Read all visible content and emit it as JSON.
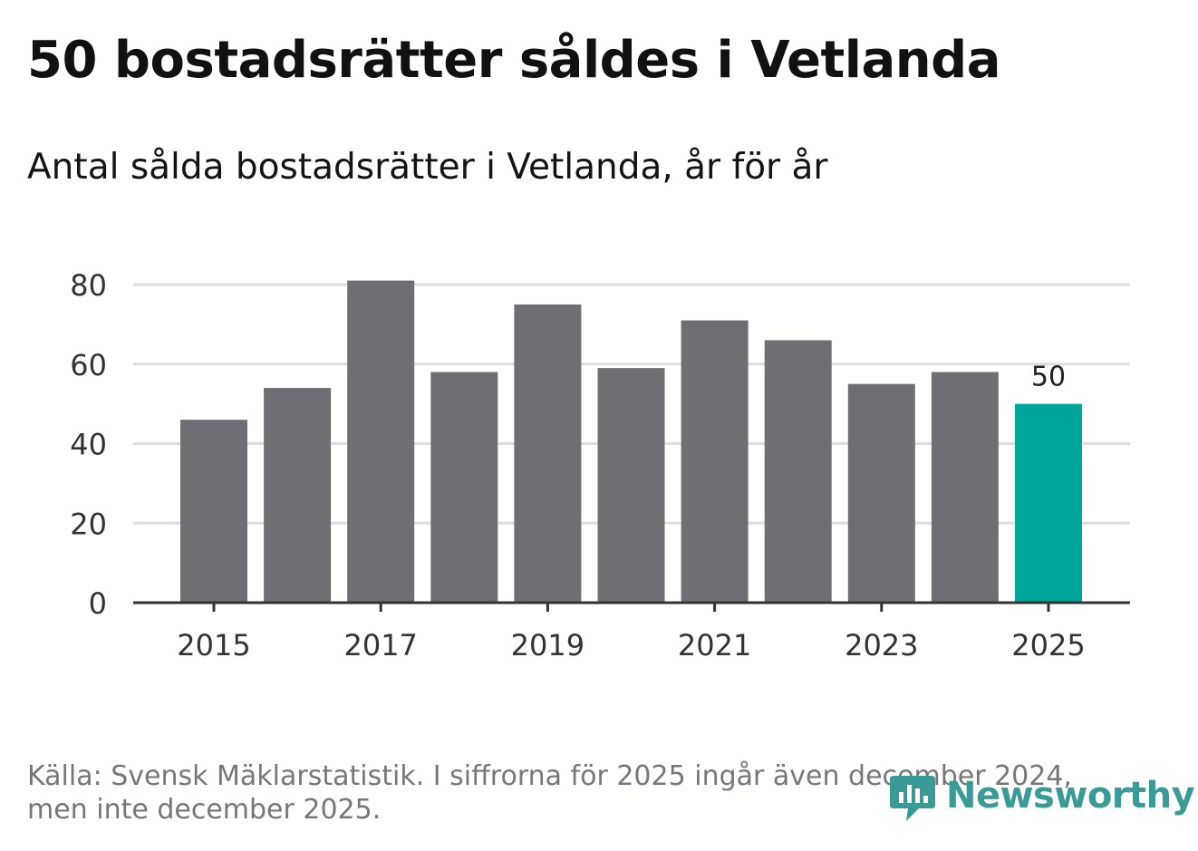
{
  "header": {
    "title": "50 bostadsrätter såldes i Vetlanda",
    "subtitle": "Antal sålda bostadsrätter i Vetlanda, år för år"
  },
  "chart_data": {
    "type": "bar",
    "title": "50 bostadsrätter såldes i Vetlanda",
    "subtitle": "Antal sålda bostadsrätter i Vetlanda, år för år",
    "categories": [
      "2015",
      "2016",
      "2017",
      "2018",
      "2019",
      "2020",
      "2021",
      "2022",
      "2023",
      "2024",
      "2025"
    ],
    "values": [
      46,
      54,
      81,
      58,
      75,
      59,
      71,
      66,
      55,
      58,
      50
    ],
    "highlight_index": 10,
    "data_labels": [
      {
        "index": 10,
        "text": "50"
      }
    ],
    "x_tick_labels": [
      "2015",
      "2017",
      "2019",
      "2021",
      "2023",
      "2025"
    ],
    "y_ticks": [
      0,
      20,
      40,
      60,
      80
    ],
    "ylim": [
      0,
      80
    ],
    "xlabel": "",
    "ylabel": "",
    "grid": true,
    "colors": {
      "bar": "#6f6e74",
      "highlight": "#00a59b",
      "grid": "#dddddd",
      "axis": "#333333",
      "text": "#333333"
    }
  },
  "footer": {
    "source_line1": "Källa: Svensk Mäklarstatistik. I siffrorna för 2025 ingår även december 2024,",
    "source_line2": "men inte december 2025."
  },
  "brand": {
    "name": "Newsworthy",
    "icon": "newsworthy-logo-icon",
    "color": "#3a9a96"
  }
}
